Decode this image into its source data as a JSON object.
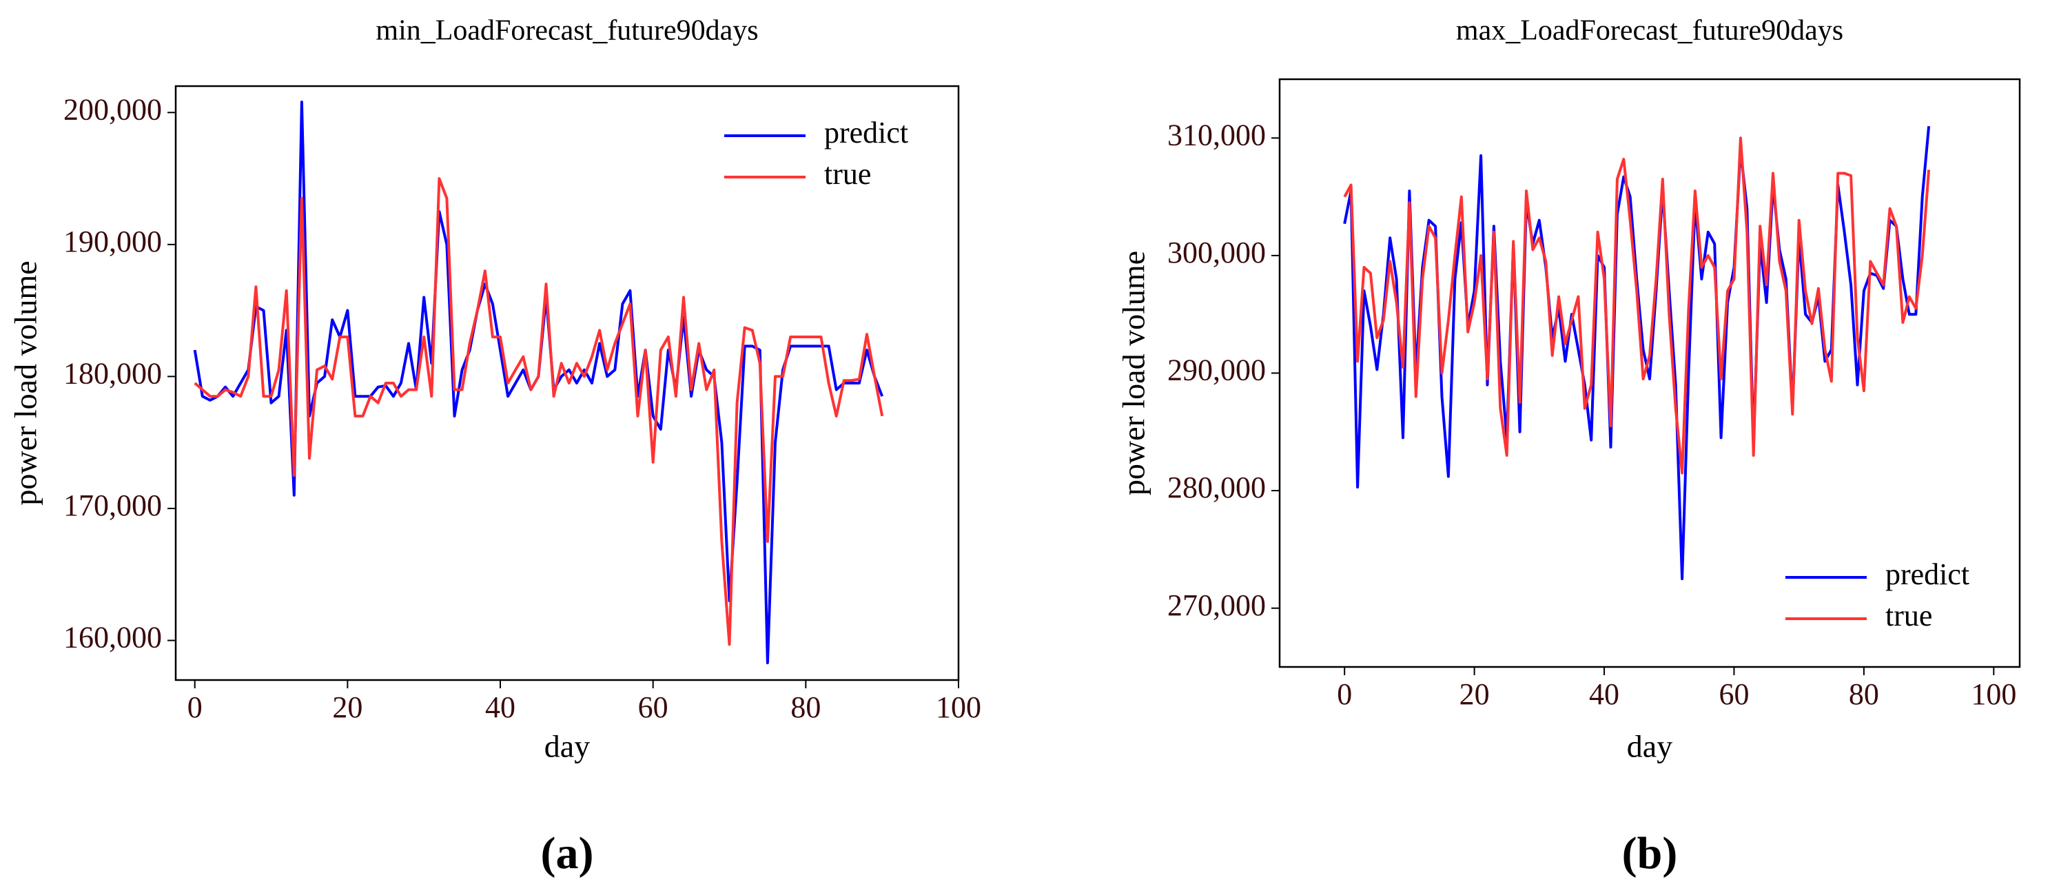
{
  "chart_data": [
    {
      "type": "line",
      "title": "min_LoadForecast_future90days",
      "label": "(a)",
      "x_label": "day",
      "y_label": "power load volume",
      "legend": "upper right",
      "x": [
        0,
        1,
        2,
        3,
        4,
        5,
        6,
        7,
        8,
        9,
        10,
        11,
        12,
        13,
        14,
        15,
        16,
        17,
        18,
        19,
        20,
        21,
        22,
        23,
        24,
        25,
        26,
        27,
        28,
        29,
        30,
        31,
        32,
        33,
        34,
        35,
        36,
        37,
        38,
        39,
        40,
        41,
        42,
        43,
        44,
        45,
        46,
        47,
        48,
        49,
        50,
        51,
        52,
        53,
        54,
        55,
        56,
        57,
        58,
        59,
        60,
        61,
        62,
        63,
        64,
        65,
        66,
        67,
        68,
        69,
        70,
        71,
        72,
        73,
        74,
        75,
        76,
        77,
        78,
        79,
        80,
        81,
        82,
        83,
        84,
        85,
        86,
        87,
        88,
        89,
        90
      ],
      "series": [
        {
          "name": "predict",
          "color": "#0000ff",
          "values": [
            182000,
            178500,
            178200,
            178500,
            179200,
            178500,
            179500,
            180500,
            185300,
            185000,
            178000,
            178500,
            183500,
            171000,
            200800,
            177000,
            179500,
            180000,
            184300,
            183000,
            185000,
            178500,
            178500,
            178500,
            179200,
            179300,
            178500,
            179500,
            182500,
            179000,
            186000,
            181000,
            192500,
            190000,
            177000,
            180500,
            182000,
            185000,
            187000,
            185500,
            182000,
            178500,
            179500,
            180500,
            179000,
            180000,
            186000,
            179000,
            180000,
            180500,
            179500,
            180500,
            179500,
            182500,
            180000,
            180500,
            185500,
            186500,
            178500,
            182000,
            177000,
            176000,
            182000,
            179000,
            184500,
            178500,
            182000,
            180500,
            180000,
            175000,
            163000,
            172000,
            182300,
            182300,
            182000,
            158300,
            175000,
            180500,
            182300,
            182300,
            182300,
            182300,
            182300,
            182300,
            179000,
            179500,
            179500,
            179500,
            182000,
            180000,
            178500
          ]
        },
        {
          "name": "true",
          "color": "#ff3333",
          "values": [
            179500,
            179000,
            178500,
            178500,
            179000,
            178800,
            178500,
            180000,
            186800,
            178500,
            178500,
            180500,
            186500,
            172500,
            193500,
            173800,
            180500,
            180800,
            179800,
            183000,
            183000,
            177000,
            177000,
            178500,
            178000,
            179500,
            179500,
            178500,
            179000,
            179000,
            183000,
            178500,
            195000,
            193500,
            179000,
            179000,
            182500,
            185000,
            188000,
            183000,
            183000,
            179500,
            180500,
            181500,
            179000,
            180000,
            187000,
            178500,
            181000,
            179500,
            181000,
            180000,
            181500,
            183500,
            180500,
            182500,
            184000,
            185500,
            177000,
            182000,
            173500,
            182000,
            183000,
            178500,
            186000,
            179000,
            182500,
            179000,
            180500,
            167500,
            159700,
            178000,
            183700,
            183500,
            181000,
            167500,
            180000,
            180000,
            183000,
            183000,
            183000,
            183000,
            183000,
            179500,
            177000,
            179700,
            179700,
            179800,
            183200,
            180000,
            177000
          ]
        }
      ],
      "xlim": [
        -2.5,
        100
      ],
      "xticks": [
        0,
        20,
        40,
        60,
        80,
        100
      ],
      "ylim": [
        157000,
        202000
      ],
      "yticks": [
        {
          "value": 160000,
          "label": "160,000"
        },
        {
          "value": 170000,
          "label": "170,000"
        },
        {
          "value": 180000,
          "label": "180,000"
        },
        {
          "value": 190000,
          "label": "190,000"
        },
        {
          "value": 200000,
          "label": "200,000"
        }
      ]
    },
    {
      "type": "line",
      "title": "max_LoadForecast_future90days",
      "label": "(b)",
      "x_label": "day",
      "y_label": "power load volume",
      "legend": "lower right",
      "x": [
        0,
        1,
        2,
        3,
        4,
        5,
        6,
        7,
        8,
        9,
        10,
        11,
        12,
        13,
        14,
        15,
        16,
        17,
        18,
        19,
        20,
        21,
        22,
        23,
        24,
        25,
        26,
        27,
        28,
        29,
        30,
        31,
        32,
        33,
        34,
        35,
        36,
        37,
        38,
        39,
        40,
        41,
        42,
        43,
        44,
        45,
        46,
        47,
        48,
        49,
        50,
        51,
        52,
        53,
        54,
        55,
        56,
        57,
        58,
        59,
        60,
        61,
        62,
        63,
        64,
        65,
        66,
        67,
        68,
        69,
        70,
        71,
        72,
        73,
        74,
        75,
        76,
        77,
        78,
        79,
        80,
        81,
        82,
        83,
        84,
        85,
        86,
        87,
        88,
        89,
        90
      ],
      "series": [
        {
          "name": "predict",
          "color": "#0000ff",
          "values": [
            302700,
            305500,
            280300,
            297000,
            294000,
            290300,
            295000,
            301500,
            298000,
            284500,
            305500,
            290000,
            299000,
            303000,
            302500,
            288000,
            281200,
            298000,
            302800,
            294000,
            297000,
            308500,
            289000,
            302500,
            291000,
            284500,
            301000,
            285000,
            304500,
            301000,
            303000,
            299000,
            293000,
            295500,
            291000,
            295000,
            292000,
            289000,
            284300,
            300000,
            299000,
            283700,
            303500,
            306700,
            305000,
            298000,
            292000,
            289500,
            297000,
            305500,
            297000,
            289000,
            272500,
            290000,
            304500,
            298000,
            302000,
            301000,
            284500,
            296000,
            299000,
            309000,
            304000,
            284000,
            301000,
            296000,
            306000,
            300500,
            298000,
            287000,
            301500,
            295000,
            294300,
            296500,
            291000,
            292000,
            306000,
            302000,
            297500,
            289000,
            297000,
            298500,
            298300,
            297200,
            303000,
            302500,
            298000,
            295000,
            295000,
            305000,
            311000
          ]
        },
        {
          "name": "true",
          "color": "#ff3333",
          "values": [
            305000,
            306000,
            291000,
            299000,
            298500,
            293000,
            294500,
            299500,
            296000,
            290500,
            304500,
            288000,
            298000,
            302500,
            301500,
            290000,
            294500,
            300000,
            305000,
            293500,
            296000,
            300000,
            289500,
            302000,
            287000,
            283000,
            301200,
            287500,
            305500,
            300500,
            301500,
            299500,
            291500,
            296500,
            292500,
            294500,
            296500,
            287000,
            289000,
            302000,
            298000,
            285500,
            306500,
            308200,
            303000,
            297000,
            289500,
            291500,
            298000,
            306500,
            295000,
            287000,
            281500,
            295500,
            305500,
            299000,
            300000,
            299000,
            289500,
            297000,
            298000,
            310000,
            302000,
            283000,
            302500,
            297500,
            307000,
            299500,
            297000,
            286500,
            303000,
            297000,
            294200,
            297200,
            292000,
            289300,
            307000,
            307000,
            306800,
            293000,
            288500,
            299500,
            298500,
            297500,
            304000,
            302500,
            294300,
            296500,
            295500,
            300000,
            307300
          ]
        }
      ],
      "xlim": [
        -10,
        104
      ],
      "xticks": [
        0,
        20,
        40,
        60,
        80,
        100
      ],
      "ylim": [
        265000,
        315000
      ],
      "yticks": [
        {
          "value": 270000,
          "label": "270,000"
        },
        {
          "value": 280000,
          "label": "280,000"
        },
        {
          "value": 290000,
          "label": "290,000"
        },
        {
          "value": 300000,
          "label": "300,000"
        },
        {
          "value": 310000,
          "label": "310,000"
        }
      ]
    }
  ]
}
